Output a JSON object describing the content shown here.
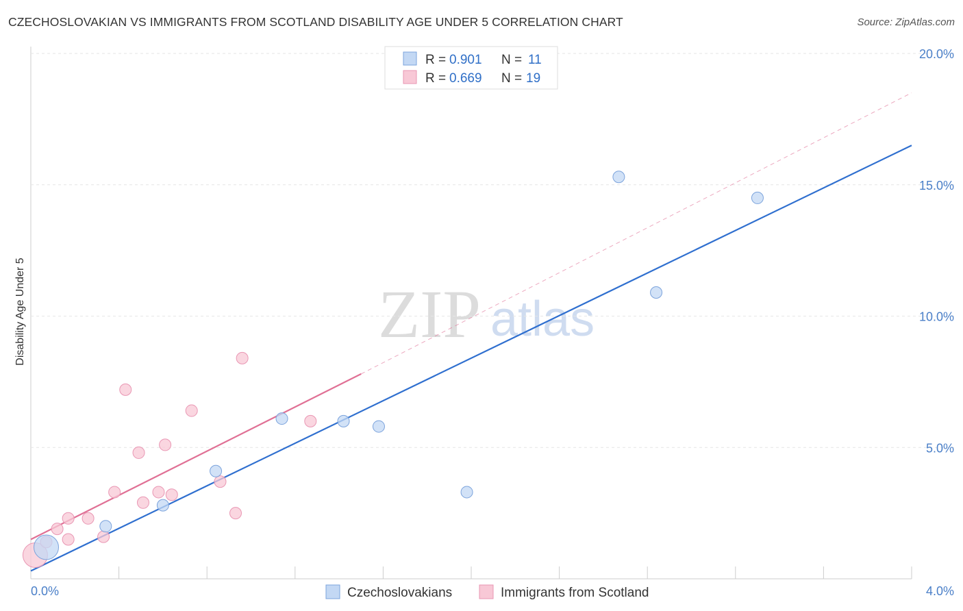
{
  "title": "CZECHOSLOVAKIAN VS IMMIGRANTS FROM SCOTLAND DISABILITY AGE UNDER 5 CORRELATION CHART",
  "source": "Source: ZipAtlas.com",
  "watermark": {
    "zip": "ZIP",
    "atlas": "atlas"
  },
  "colors": {
    "blue": "#2f6fcf",
    "blue_fill": "#c3d8f4",
    "blue_stroke": "#7ba3dc",
    "pink": "#e07095",
    "pink_fill": "#f8c8d6",
    "pink_stroke": "#e996b3",
    "tick": "#4a7fc8"
  },
  "legend": {
    "r_label": "R =",
    "n_label": "N =",
    "blue": {
      "r": "0.901",
      "n": "11"
    },
    "pink": {
      "r": "0.669",
      "n": "19"
    }
  },
  "chart_data": {
    "type": "scatter",
    "title": "CZECHOSLOVAKIAN VS IMMIGRANTS FROM SCOTLAND DISABILITY AGE UNDER 5 CORRELATION CHART",
    "ylabel": "Disability Age Under 5",
    "xlabel": "",
    "xlim": [
      0,
      4.0
    ],
    "ylim": [
      0,
      20.0
    ],
    "x_tick_labels": [
      "0.0%",
      "4.0%"
    ],
    "y_ticks": [
      5.0,
      10.0,
      15.0,
      20.0
    ],
    "y_tick_labels": [
      "5.0%",
      "10.0%",
      "15.0%",
      "20.0%"
    ],
    "grid": true,
    "series": [
      {
        "name": "Czechoslovakians",
        "color": "blue",
        "points": [
          {
            "x": 0.07,
            "y": 1.2,
            "big": true
          },
          {
            "x": 0.34,
            "y": 2.0
          },
          {
            "x": 0.6,
            "y": 2.8
          },
          {
            "x": 0.84,
            "y": 4.1
          },
          {
            "x": 1.14,
            "y": 6.1
          },
          {
            "x": 1.42,
            "y": 6.0
          },
          {
            "x": 1.58,
            "y": 5.8
          },
          {
            "x": 1.98,
            "y": 3.3
          },
          {
            "x": 2.67,
            "y": 15.3
          },
          {
            "x": 2.84,
            "y": 10.9
          },
          {
            "x": 3.3,
            "y": 14.5
          }
        ],
        "trend": {
          "x0": 0.0,
          "y0": 0.3,
          "x1": 4.0,
          "y1": 16.5,
          "style": "solid"
        }
      },
      {
        "name": "Immigrants from Scotland",
        "color": "pink",
        "points": [
          {
            "x": 0.02,
            "y": 0.9,
            "big": true
          },
          {
            "x": 0.07,
            "y": 1.4
          },
          {
            "x": 0.12,
            "y": 1.9
          },
          {
            "x": 0.17,
            "y": 1.5
          },
          {
            "x": 0.17,
            "y": 2.3
          },
          {
            "x": 0.26,
            "y": 2.3
          },
          {
            "x": 0.33,
            "y": 1.6
          },
          {
            "x": 0.38,
            "y": 3.3
          },
          {
            "x": 0.43,
            "y": 7.2
          },
          {
            "x": 0.49,
            "y": 4.8
          },
          {
            "x": 0.51,
            "y": 2.9
          },
          {
            "x": 0.58,
            "y": 3.3
          },
          {
            "x": 0.61,
            "y": 5.1
          },
          {
            "x": 0.64,
            "y": 3.2
          },
          {
            "x": 0.73,
            "y": 6.4
          },
          {
            "x": 0.86,
            "y": 3.7
          },
          {
            "x": 0.93,
            "y": 2.5
          },
          {
            "x": 0.96,
            "y": 8.4
          },
          {
            "x": 1.27,
            "y": 6.0
          }
        ],
        "trend": {
          "x0": 0.0,
          "y0": 1.5,
          "x1": 1.5,
          "y1": 7.8,
          "style": "solid",
          "extension": {
            "x1": 4.0,
            "y1": 18.5,
            "style": "dashed"
          }
        }
      }
    ]
  }
}
